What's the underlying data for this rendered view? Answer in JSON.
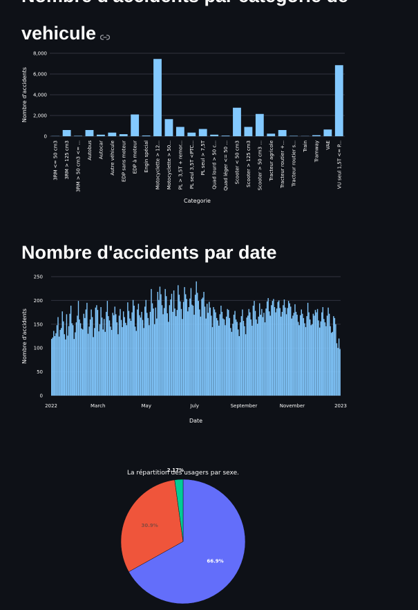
{
  "sections": {
    "category": {
      "heading_cut": "Nombre d'accidents par categorie de",
      "heading": "vehicule"
    },
    "date": {
      "heading": "Nombre d'accidents par date"
    }
  },
  "colors": {
    "bar": "#83c9ff",
    "grid": "#31333f",
    "bg": "#0e1117",
    "text": "#fafafa",
    "pie": [
      "#636efa",
      "#ef553b",
      "#00cc96"
    ]
  },
  "icons": {
    "anchor": "link-icon"
  },
  "chart_data": [
    {
      "type": "bar",
      "title": "",
      "xlabel": "Categorie",
      "ylabel": "Nombre d'accidents",
      "ylim": [
        0,
        8000
      ],
      "yticks": [
        "0",
        "2,000",
        "4,000",
        "6,000",
        "8,000"
      ],
      "grid": true,
      "categories": [
        "3RM <= 50 cm3",
        "3RM > 125 cm3",
        "3RM > 50 cm3 <= ...",
        "Autobus",
        "Autocar",
        "Autre véhicule",
        "EDP sans moteur",
        "EDP à moteur",
        "Engin spécial",
        "Motocyclette > 12...",
        "Motocyclette > 50...",
        "PL > 3,5T + remor...",
        "PL seul 3,5T <PTC...",
        "PL seul > 7,5T",
        "Quad lourd > 50 c...",
        "Quad léger <= 50 ...",
        "Scooter < 50 cm3",
        "Scooter > 125 cm3",
        "Scooter > 50 cm3 ...",
        "Tracteur agricole",
        "Tracteur routier +...",
        "Tracteur routier s...",
        "Train",
        "Tramway",
        "VAE",
        "VU seul 1,5T <= P..."
      ],
      "values": [
        20,
        600,
        40,
        600,
        150,
        350,
        200,
        2100,
        70,
        7450,
        1650,
        900,
        350,
        700,
        150,
        60,
        2750,
        900,
        2150,
        250,
        600,
        40,
        20,
        100,
        650,
        6850
      ]
    },
    {
      "type": "bar",
      "title": "",
      "xlabel": "Date",
      "ylabel": "Nombre d'accidents",
      "ylim": [
        0,
        250
      ],
      "yticks": [
        "0",
        "50",
        "100",
        "150",
        "200",
        "250"
      ],
      "xticks": [
        "2022",
        "March",
        "May",
        "July",
        "September",
        "November",
        "2023"
      ],
      "grid": true,
      "x_start": "2022-01-01",
      "x_end": "2022-12-31",
      "values": [
        119,
        122,
        136,
        125,
        131,
        148,
        165,
        124,
        138,
        142,
        177,
        156,
        129,
        118,
        171,
        126,
        146,
        172,
        189,
        152,
        148,
        119,
        133,
        154,
        168,
        199,
        160,
        152,
        141,
        139,
        172,
        163,
        181,
        195,
        130,
        145,
        160,
        181,
        165,
        123,
        142,
        185,
        190,
        180,
        135,
        150,
        186,
        164,
        139,
        161,
        134,
        176,
        199,
        167,
        158,
        145,
        138,
        174,
        169,
        187,
        171,
        154,
        129,
        168,
        182,
        159,
        144,
        177,
        165,
        153,
        148,
        196,
        178,
        162,
        157,
        175,
        201,
        189,
        145,
        136,
        181,
        193,
        169,
        164,
        176,
        159,
        142,
        187,
        201,
        174,
        163,
        148,
        176,
        224,
        194,
        183,
        150,
        185,
        162,
        218,
        201,
        229,
        213,
        190,
        171,
        184,
        224,
        209,
        173,
        155,
        190,
        202,
        214,
        176,
        221,
        183,
        167,
        180,
        232,
        212,
        198,
        182,
        161,
        197,
        228,
        213,
        203,
        177,
        186,
        204,
        226,
        191,
        189,
        170,
        212,
        240,
        216,
        199,
        181,
        166,
        203,
        206,
        218,
        187,
        162,
        193,
        174,
        197,
        185,
        168,
        144,
        186,
        181,
        175,
        163,
        158,
        147,
        171,
        189,
        176,
        162,
        160,
        148,
        166,
        182,
        180,
        163,
        142,
        134,
        151,
        170,
        178,
        160,
        155,
        139,
        125,
        154,
        167,
        181,
        157,
        146,
        129,
        164,
        168,
        182,
        175,
        160,
        147,
        189,
        199,
        178,
        160,
        151,
        166,
        194,
        170,
        182,
        165,
        174,
        154,
        183,
        198,
        205,
        177,
        168,
        190,
        199,
        203,
        186,
        175,
        183,
        197,
        200,
        184,
        166,
        176,
        190,
        202,
        185,
        171,
        184,
        199,
        194,
        187,
        162,
        168,
        174,
        192,
        176,
        170,
        155,
        148,
        169,
        181,
        172,
        163,
        152,
        144,
        167,
        195,
        175,
        160,
        148,
        150,
        172,
        168,
        180,
        175,
        182,
        158,
        143,
        156,
        175,
        186,
        161,
        154,
        146,
        168,
        185,
        172,
        146,
        132,
        134,
        167,
        163,
        150,
        110,
        100,
        120,
        98
      ]
    },
    {
      "type": "pie",
      "title": "La répartition des usagers par sexe.",
      "labels": [
        "",
        "",
        ""
      ],
      "values": [
        66.9,
        30.9,
        2.17
      ],
      "data_labels": [
        "66.9%",
        "30.9%",
        "2.17%"
      ]
    }
  ]
}
